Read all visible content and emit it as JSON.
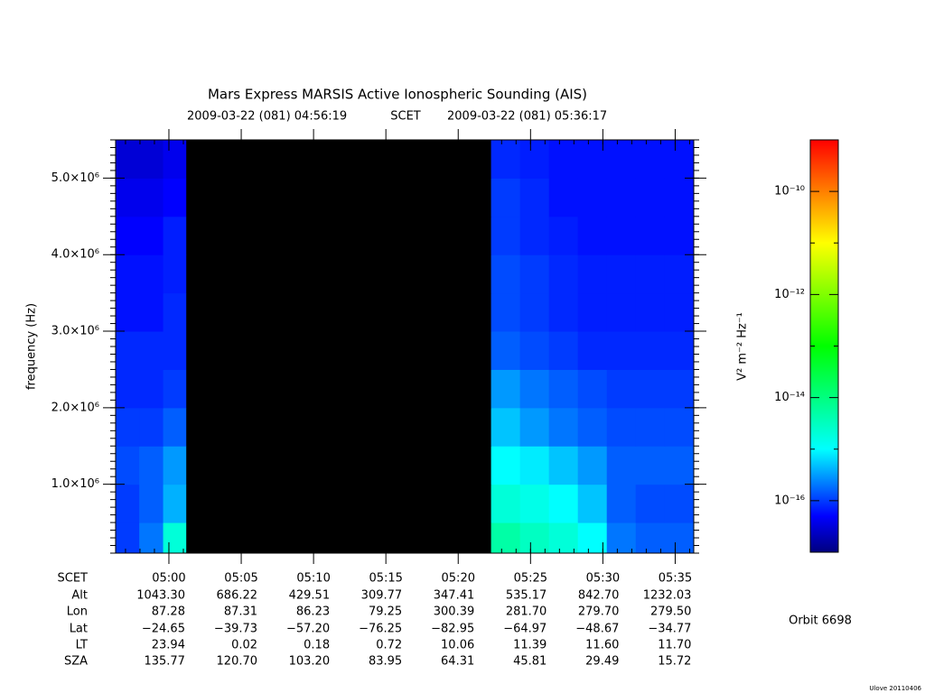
{
  "chart_data": {
    "type": "spectrogram",
    "title": "Mars Express MARSIS Active Ionospheric Sounding (AIS)",
    "subtitle": [
      "2009-03-22 (081) 04:56:19",
      "SCET",
      "2009-03-22 (081) 05:36:17"
    ],
    "y_label": "frequency (Hz)",
    "xlim": [
      296.317,
      336.283
    ],
    "xticks": [
      {
        "value": 300,
        "label": "05:00"
      },
      {
        "value": 305,
        "label": "05:05"
      },
      {
        "value": 310,
        "label": "05:10"
      },
      {
        "value": 315,
        "label": "05:15"
      },
      {
        "value": 320,
        "label": "05:20"
      },
      {
        "value": 325,
        "label": "05:25"
      },
      {
        "value": 330,
        "label": "05:30"
      },
      {
        "value": 335,
        "label": "05:35"
      }
    ],
    "ylim": [
      100000,
      5500000
    ],
    "yticks": [
      {
        "value": 1000000,
        "label": "1.0×10⁶"
      },
      {
        "value": 2000000,
        "label": "2.0×10⁶"
      },
      {
        "value": 3000000,
        "label": "3.0×10⁶"
      },
      {
        "value": 4000000,
        "label": "4.0×10⁶"
      },
      {
        "value": 5000000,
        "label": "5.0×10⁶"
      }
    ],
    "xbins": [
      296.317,
      297.95,
      299.6,
      301.2,
      322.27,
      324.27,
      326.27,
      328.27,
      330.27,
      332.27,
      334.27,
      336.283
    ],
    "ybins": [
      100000,
      500000,
      1000000,
      1500000,
      2000000,
      2500000,
      3000000,
      3500000,
      4000000,
      4500000,
      5000000,
      5500000
    ],
    "z": [
      [
        1e-16,
        2e-16,
        2e-15,
        null,
        5e-15,
        3e-15,
        2e-15,
        1e-15,
        2e-16,
        1.5e-16,
        1.5e-16
      ],
      [
        1e-16,
        1.5e-16,
        4e-16,
        null,
        2e-15,
        1.5e-15,
        1e-15,
        5e-16,
        1.5e-16,
        1.2e-16,
        1.2e-16
      ],
      [
        1.2e-16,
        1.5e-16,
        3e-16,
        null,
        1e-15,
        8e-16,
        5e-16,
        3e-16,
        1.5e-16,
        1.5e-16,
        1.5e-16
      ],
      [
        1e-16,
        1e-16,
        1.5e-16,
        null,
        5e-16,
        3e-16,
        2e-16,
        1.5e-16,
        1.2e-16,
        1.2e-16,
        1.2e-16
      ],
      [
        8e-17,
        8e-17,
        1e-16,
        null,
        3e-16,
        2e-16,
        1.5e-16,
        1.2e-16,
        1e-16,
        1e-16,
        1e-16
      ],
      [
        8e-17,
        8e-17,
        8e-17,
        null,
        1.5e-16,
        1.2e-16,
        1e-16,
        8e-17,
        8e-17,
        8e-17,
        8e-17
      ],
      [
        6e-17,
        6e-17,
        8e-17,
        null,
        1.2e-16,
        1e-16,
        8e-17,
        7e-17,
        7e-17,
        7e-17,
        7e-17
      ],
      [
        6e-17,
        6e-17,
        7e-17,
        null,
        1.2e-16,
        1e-16,
        8e-17,
        7e-17,
        7e-17,
        7e-17,
        7e-17
      ],
      [
        5e-17,
        5e-17,
        7e-17,
        null,
        1e-16,
        8e-17,
        7e-17,
        6e-17,
        6e-17,
        6e-17,
        6e-17
      ],
      [
        4e-17,
        4e-17,
        5e-17,
        null,
        1e-16,
        8e-17,
        6e-17,
        6e-17,
        6e-17,
        6e-17,
        6e-17
      ],
      [
        3e-17,
        3e-17,
        4e-17,
        null,
        8e-17,
        7e-17,
        6e-17,
        6e-17,
        6e-17,
        6e-17,
        6e-17
      ]
    ],
    "null_color": "#000000",
    "colormap": [
      "#00007f",
      "#0000ff",
      "#00ffff",
      "#00ff00",
      "#ffff00",
      "#ff0000"
    ],
    "colormap_levels": [
      1e-17,
      5e-17,
      1e-15,
      1e-13,
      1e-11,
      1e-09
    ],
    "clim": [
      1e-17,
      1e-09
    ],
    "clog": true,
    "cticks": [
      {
        "value": 1e-16,
        "label": "10⁻¹⁶"
      },
      {
        "value": 1e-14,
        "label": "10⁻¹⁴"
      },
      {
        "value": 1e-12,
        "label": "10⁻¹²"
      },
      {
        "value": 1e-10,
        "label": "10⁻¹⁰"
      }
    ],
    "colorbar_label": "V² m⁻² Hz⁻¹",
    "ephemeris": {
      "row_labels": [
        "SCET",
        "Alt",
        "Lon",
        "Lat",
        "LT",
        "SZA"
      ],
      "rows": [
        [
          "1043.30",
          "686.22",
          "429.51",
          "309.77",
          "347.41",
          "535.17",
          "842.70",
          "1232.03"
        ],
        [
          "87.28",
          "87.31",
          "86.23",
          "79.25",
          "300.39",
          "281.70",
          "279.70",
          "279.50"
        ],
        [
          "−24.65",
          "−39.73",
          "−57.20",
          "−76.25",
          "−82.95",
          "−64.97",
          "−48.67",
          "−34.77"
        ],
        [
          "23.94",
          "0.02",
          "0.18",
          "0.72",
          "10.06",
          "11.39",
          "11.60",
          "11.70"
        ],
        [
          "135.77",
          "120.70",
          "103.20",
          "83.95",
          "64.31",
          "45.81",
          "29.49",
          "15.72"
        ]
      ]
    },
    "orbit": "Orbit 6698",
    "footer": "Ulove 20110406"
  }
}
